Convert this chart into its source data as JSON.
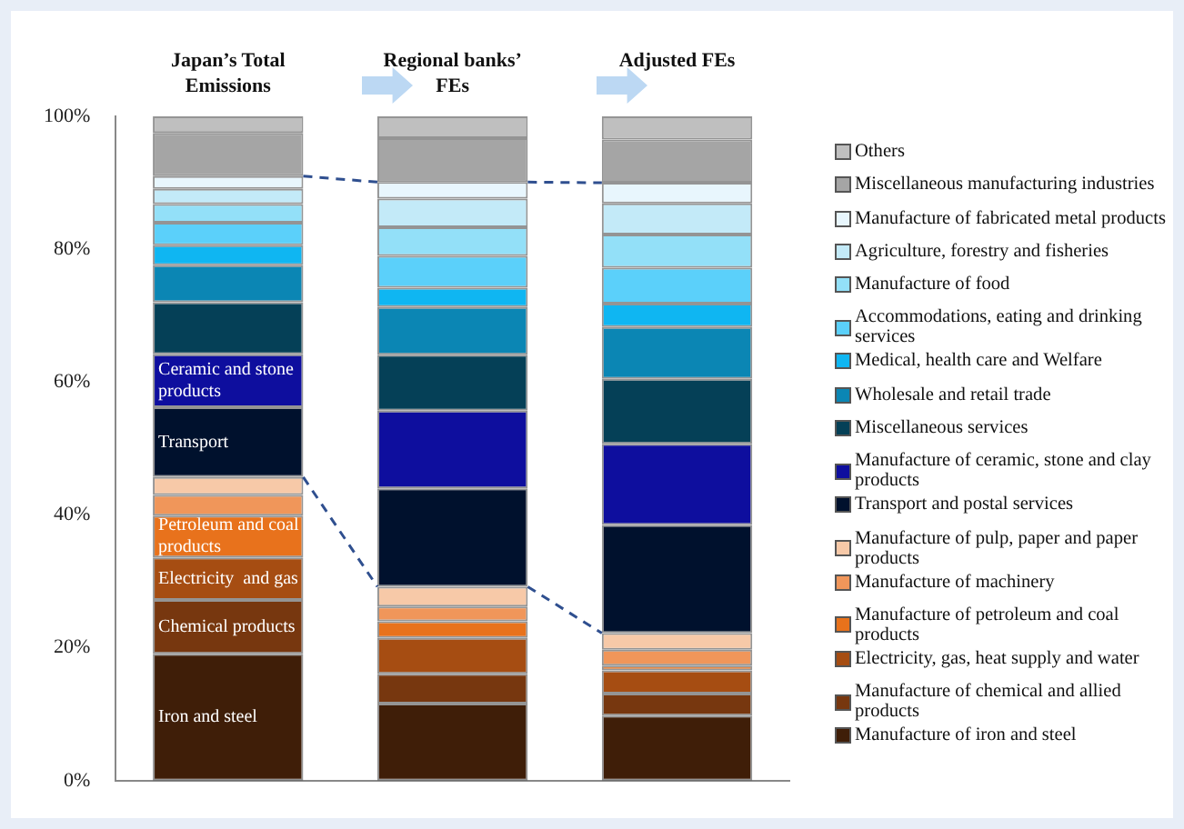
{
  "chart_data": {
    "type": "bar",
    "stacked": true,
    "categories": [
      "Japan’s Total Emissions",
      "Regional banks’ FEs",
      "Adjusted FEs"
    ],
    "series": [
      {
        "name": "Manufacture of iron and steel",
        "color": "#3f1e08",
        "values": [
          19.1,
          11.6,
          9.8
        ]
      },
      {
        "name": "Manufacture of chemical and allied products",
        "color": "#77370f",
        "values": [
          8.1,
          4.5,
          3.3
        ]
      },
      {
        "name": "Electricity, gas, heat supply and water",
        "color": "#a64d12",
        "values": [
          6.4,
          5.4,
          3.5
        ]
      },
      {
        "name": "Manufacture of petroleum and coal products",
        "color": "#e8721c",
        "values": [
          6.3,
          2.5,
          0.7
        ]
      },
      {
        "name": "Manufacture of machinery",
        "color": "#f0965a",
        "values": [
          3.1,
          2.2,
          2.4
        ]
      },
      {
        "name": "Manufacture of pulp, paper and paper products",
        "color": "#f7c9a8",
        "values": [
          2.7,
          3.0,
          2.5
        ]
      },
      {
        "name": "Transport and postal services",
        "color": "#00112d",
        "values": [
          10.5,
          14.8,
          16.3
        ]
      },
      {
        "name": "Manufacture of ceramic, stone and clay products",
        "color": "#0e0e9e",
        "values": [
          8.0,
          11.7,
          12.2
        ]
      },
      {
        "name": "Miscellaneous services",
        "color": "#054057",
        "values": [
          7.8,
          8.4,
          9.8
        ]
      },
      {
        "name": "Wholesale and retail trade",
        "color": "#0b86b4",
        "values": [
          5.6,
          7.2,
          7.8
        ]
      },
      {
        "name": "Medical, health care and Welfare",
        "color": "#0fb6f2",
        "values": [
          3.0,
          2.9,
          3.5
        ]
      },
      {
        "name": "Accommodations, eating and drinking services",
        "color": "#5bd0fa",
        "values": [
          3.4,
          4.8,
          5.4
        ]
      },
      {
        "name": "Manufacture of food",
        "color": "#93e0f8",
        "values": [
          2.8,
          4.3,
          5.0
        ]
      },
      {
        "name": "Agriculture, forestry and fisheries",
        "color": "#c3eaf8",
        "values": [
          2.3,
          4.3,
          4.7
        ]
      },
      {
        "name": "Manufacture of fabricated metal products",
        "color": "#e8f6fd",
        "values": [
          1.9,
          2.5,
          3.1
        ]
      },
      {
        "name": "Miscellaneous manufacturing industries",
        "color": "#a5a5a5",
        "values": [
          6.5,
          6.6,
          6.5
        ]
      },
      {
        "name": "Others",
        "color": "#bfbfbf",
        "values": [
          2.5,
          3.3,
          3.5
        ]
      }
    ],
    "ylim": [
      0,
      100
    ],
    "yticks": [
      {
        "value": 0,
        "label": "0%"
      },
      {
        "value": 20,
        "label": "20%"
      },
      {
        "value": 40,
        "label": "40%"
      },
      {
        "value": 60,
        "label": "60%"
      },
      {
        "value": 80,
        "label": "80%"
      },
      {
        "value": 100,
        "label": "100%"
      }
    ],
    "grid": false,
    "legend": "right",
    "annotations": [
      "Iron and steel",
      "Chemical products",
      "Electricity  and gas",
      "Petroleum and coal products",
      "Transport",
      "Ceramic and stone products"
    ]
  }
}
